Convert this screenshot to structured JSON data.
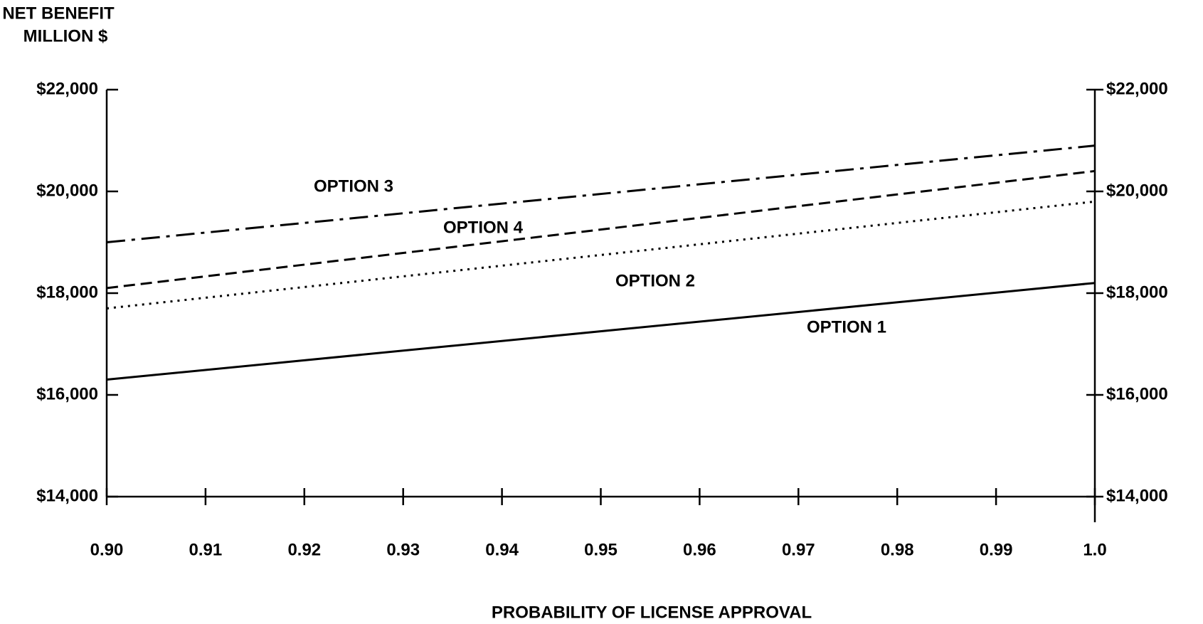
{
  "chart_data": {
    "type": "line",
    "title_lines": [
      "NET BENEFIT",
      "MILLION $"
    ],
    "x_label": "PROBABILITY OF LICENSE APPROVAL",
    "x": [
      0.9,
      1.0
    ],
    "series": [
      {
        "name": "OPTION 1",
        "color": "#000000",
        "line_style": "solid",
        "values": [
          16300,
          18200
        ]
      },
      {
        "name": "OPTION 2",
        "color": "#000000",
        "line_style": "dotted",
        "values": [
          17700,
          19800
        ]
      },
      {
        "name": "OPTION 3",
        "color": "#000000",
        "line_style": "dashdot",
        "values": [
          19000,
          20900
        ]
      },
      {
        "name": "OPTION 4",
        "color": "#000000",
        "line_style": "dashed",
        "values": [
          18100,
          20400
        ]
      }
    ],
    "xlim": [
      0.9,
      1.0
    ],
    "xticks": [
      {
        "value": 0.9,
        "label": "0.90"
      },
      0.91,
      0.92,
      0.93,
      0.94,
      0.95,
      0.96,
      0.97,
      0.98,
      0.99,
      {
        "value": 1,
        "label": "1.0"
      }
    ],
    "ylim": [
      14000,
      22000
    ],
    "yticks": [
      {
        "value": 14000,
        "label": "$14,000"
      },
      {
        "value": 16000,
        "label": "$16,000"
      },
      {
        "value": 18000,
        "label": "$18,000"
      },
      {
        "value": 20000,
        "label": "$20,000"
      },
      {
        "value": 22000,
        "label": "$22,000"
      }
    ],
    "grid": false
  }
}
